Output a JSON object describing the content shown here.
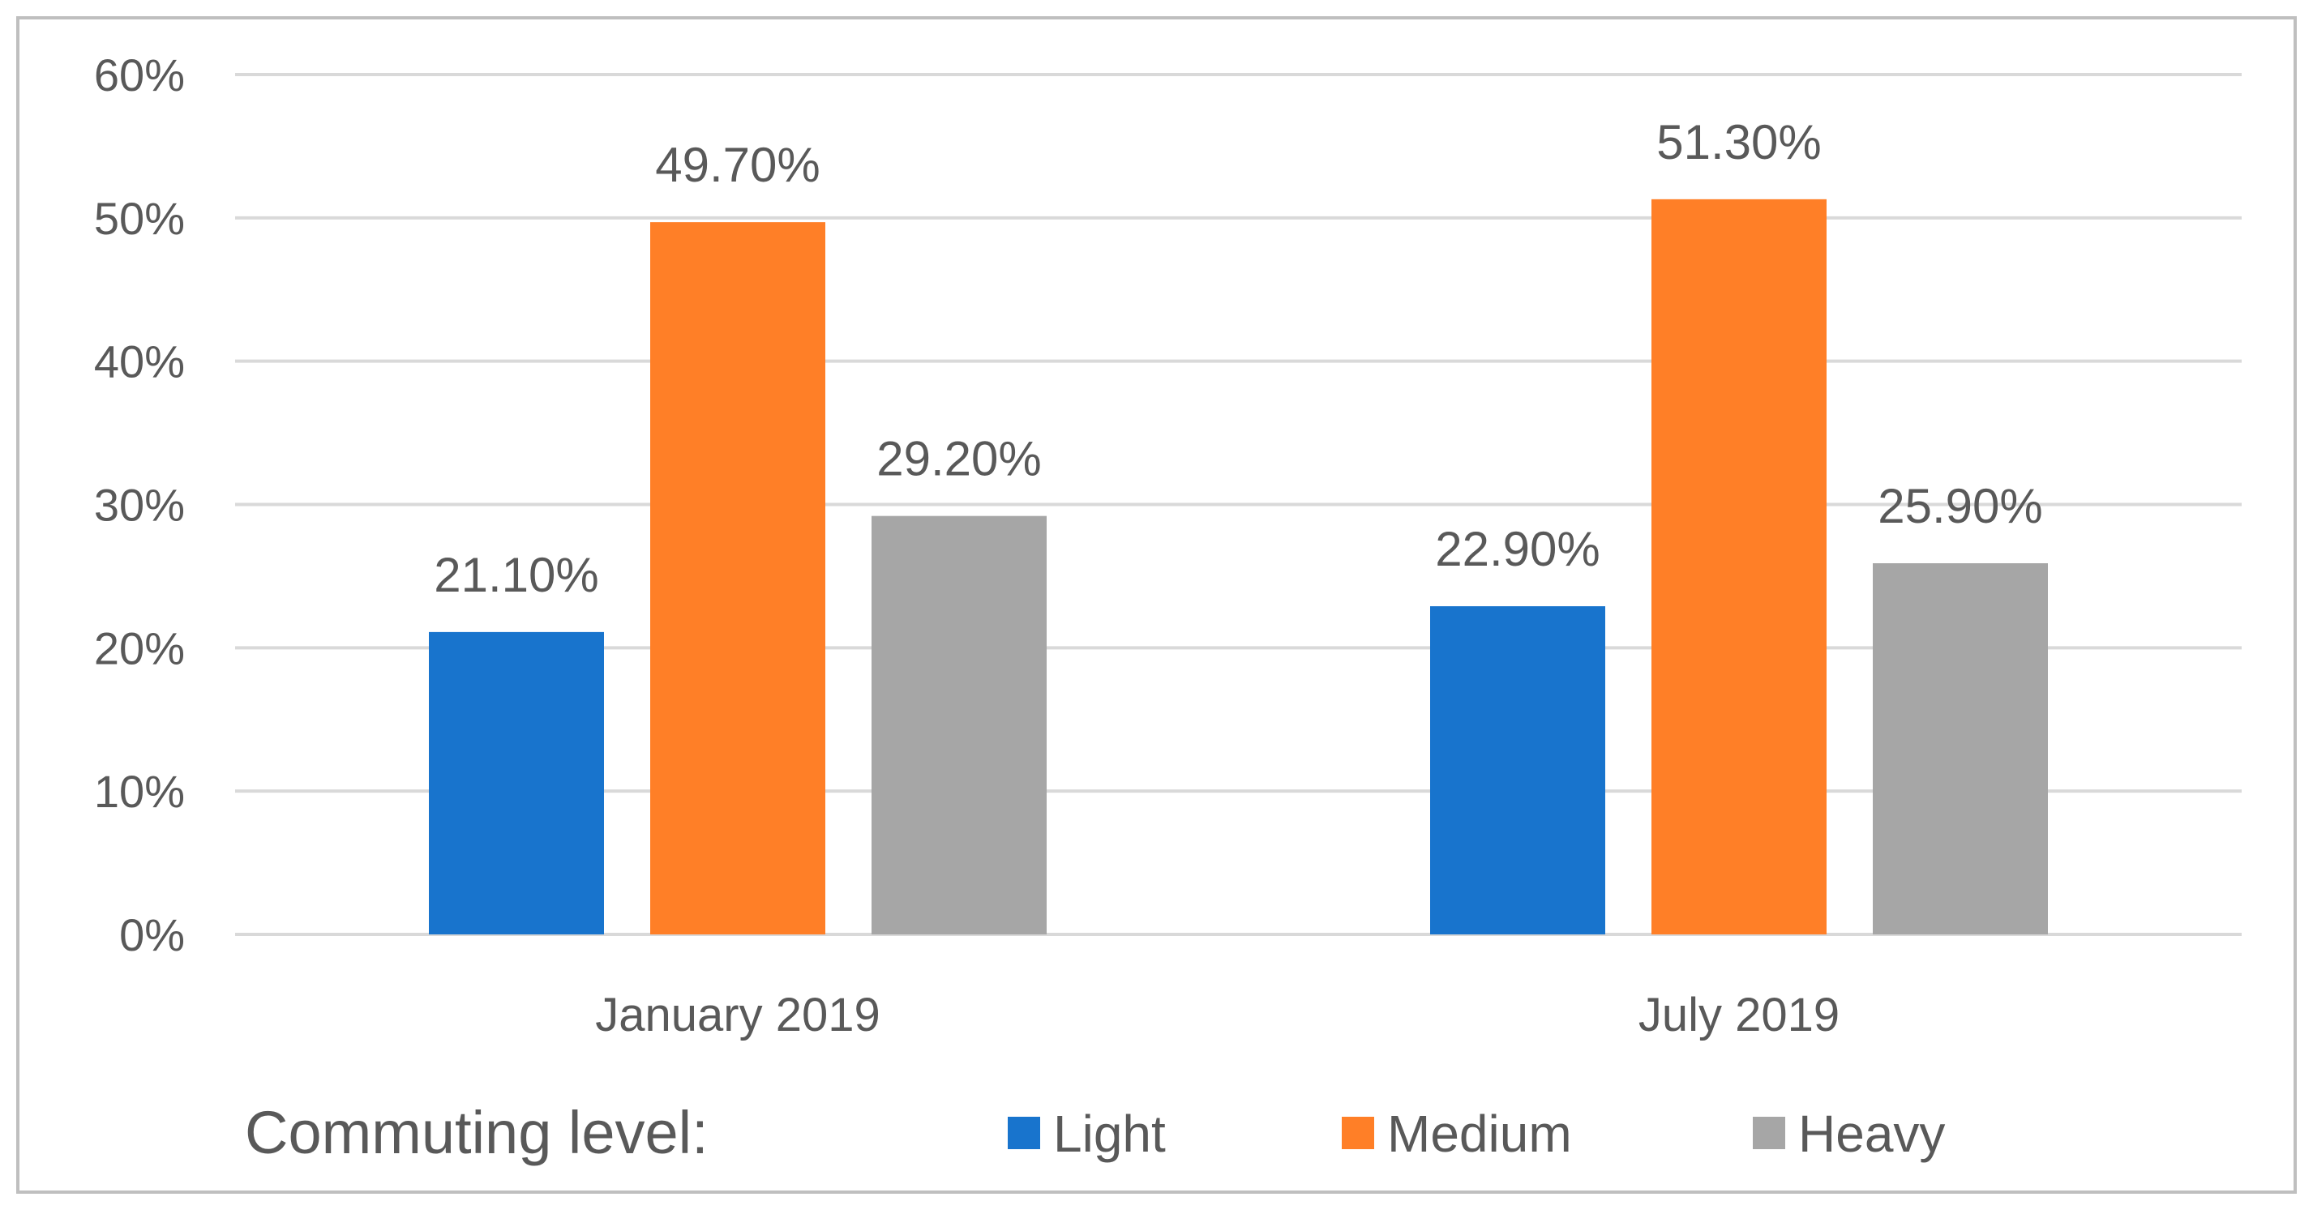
{
  "chart_data": {
    "type": "bar",
    "title": "",
    "xlabel": "",
    "ylabel": "",
    "categories": [
      "January 2019",
      "July 2019"
    ],
    "series": [
      {
        "name": "Light",
        "values": [
          21.1,
          22.9
        ],
        "labels": [
          "21.10%",
          "22.90%"
        ],
        "color": "#1874CD"
      },
      {
        "name": "Medium",
        "values": [
          49.7,
          51.3
        ],
        "labels": [
          "49.70%",
          "51.30%"
        ],
        "color": "#FF7F27"
      },
      {
        "name": "Heavy",
        "values": [
          29.2,
          25.9
        ],
        "labels": [
          "29.20%",
          "25.90%"
        ],
        "color": "#A6A6A6"
      }
    ],
    "ylim": [
      0,
      60
    ],
    "yticks": [
      0,
      10,
      20,
      30,
      40,
      50,
      60
    ],
    "ytick_labels": [
      "0%",
      "10%",
      "20%",
      "30%",
      "40%",
      "50%",
      "60%"
    ],
    "grid": true,
    "legend_title": "Commuting level:",
    "legend_placement": "bottom"
  },
  "colors": {
    "gridline": "#D9D9D9",
    "text": "#595959",
    "border": "#BFBFBF"
  }
}
